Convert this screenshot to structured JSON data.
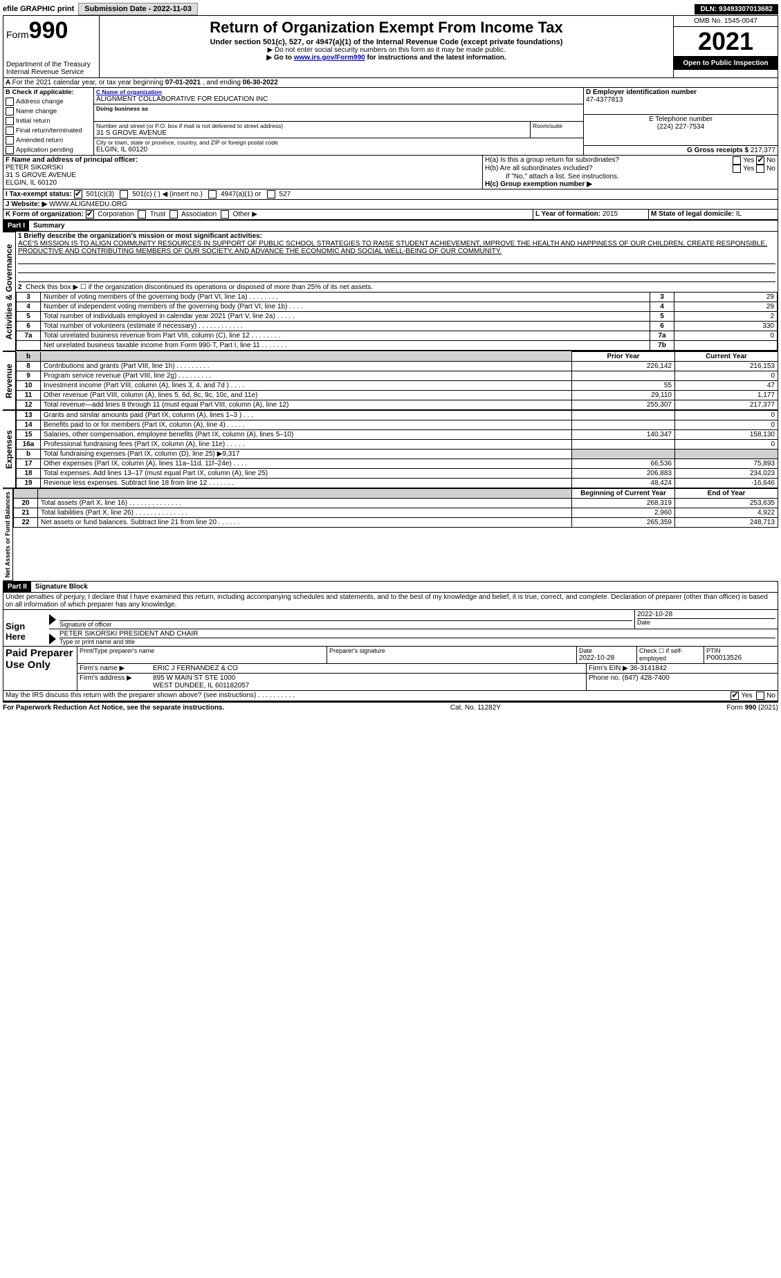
{
  "topbar": {
    "efile": "efile GRAPHIC print",
    "submission_label": "Submission Date - 2022-11-03",
    "dln": "DLN: 93493307013682"
  },
  "header": {
    "form_label": "Form",
    "form_number": "990",
    "title": "Return of Organization Exempt From Income Tax",
    "subtitle": "Under section 501(c), 527, or 4947(a)(1) of the Internal Revenue Code (except private foundations)",
    "note_ssn": "▶ Do not enter social security numbers on this form as it may be made public.",
    "note_goto_pre": "▶ Go to ",
    "note_goto_link": "www.irs.gov/Form990",
    "note_goto_post": " for instructions and the latest information.",
    "dept": "Department of the Treasury\nInternal Revenue Service",
    "omb": "OMB No. 1545-0047",
    "year": "2021",
    "public": "Open to Public Inspection"
  },
  "lineA": {
    "text_pre": "For the 2021 calendar year, or tax year beginning ",
    "begin": "07-01-2021",
    "mid": " , and ending ",
    "end": "06-30-2022"
  },
  "sectionB": {
    "label": "B Check if applicable:",
    "opts": [
      "Address change",
      "Name change",
      "Initial return",
      "Final return/terminated",
      "Amended return",
      "Application pending"
    ]
  },
  "sectionC": {
    "label": "C Name of organization",
    "name": "ALIGNMENT COLLABORATIVE FOR EDUCATION INC",
    "dba_label": "Doing business as",
    "street_label": "Number and street (or P.O. box if mail is not delivered to street address)",
    "room_label": "Room/suite",
    "street": "31 S GROVE AVENUE",
    "city_label": "City or town, state or province, country, and ZIP or foreign postal code",
    "city": "ELGIN, IL  60120"
  },
  "sectionD": {
    "label": "D Employer identification number",
    "value": "47-4377813"
  },
  "sectionE": {
    "label": "E Telephone number",
    "value": "(224) 227-7534"
  },
  "sectionG": {
    "label": "G Gross receipts $",
    "value": "217,377"
  },
  "sectionF": {
    "label": "F Name and address of principal officer:",
    "name": "PETER SIKORSKI",
    "street": "31 S GROVE AVENUE",
    "city": "ELGIN, IL  60120"
  },
  "sectionH": {
    "a_label": "H(a)  Is this a group return for subordinates?",
    "b_label": "H(b)  Are all subordinates included?",
    "b_note": "If \"No,\" attach a list. See instructions.",
    "c_label": "H(c)  Group exemption number ▶",
    "yes": "Yes",
    "no": "No"
  },
  "sectionI": {
    "label": "I   Tax-exempt status:",
    "opts": [
      "501(c)(3)",
      "501(c) (    ) ◀ (insert no.)",
      "4947(a)(1) or",
      "527"
    ]
  },
  "sectionJ": {
    "label": "J   Website: ▶",
    "value": "WWW.ALIGN4EDU.ORG"
  },
  "sectionK": {
    "label": "K Form of organization:",
    "opts": [
      "Corporation",
      "Trust",
      "Association",
      "Other ▶"
    ]
  },
  "sectionL": {
    "label": "L Year of formation:",
    "value": "2015"
  },
  "sectionM": {
    "label": "M State of legal domicile:",
    "value": "IL"
  },
  "part1": {
    "label": "Part I",
    "title": "Summary",
    "q1_label": "1  Briefly describe the organization's mission or most significant activities:",
    "mission": "ACE'S MISSION IS TO ALIGN COMMUNITY RESOURCES IN SUPPORT OF PUBLIC SCHOOL STRATEGIES TO RAISE STUDENT ACHIEVEMENT, IMPROVE THE HEALTH AND HAPPINESS OF OUR CHILDREN, CREATE RESPONSIBLE, PRODUCTIVE AND CONTRIBUTING MEMBERS OF OUR SOCIETY, AND ADVANCE THE ECONOMIC AND SOCIAL WELL-BEING OF OUR COMMUNITY.",
    "q2": "Check this box ▶ ☐  if the organization discontinued its operations or disposed of more than 25% of its net assets.",
    "rows_gov": [
      {
        "n": "3",
        "t": "Number of voting members of the governing body (Part VI, line 1a)   .    .    .    .    .    .    .    .",
        "r": "3",
        "v": "29"
      },
      {
        "n": "4",
        "t": "Number of independent voting members of the governing body (Part VI, line 1b)    .    .    .    .",
        "r": "4",
        "v": "29"
      },
      {
        "n": "5",
        "t": "Total number of individuals employed in calendar year 2021 (Part V, line 2a)    .    .    .    .    .",
        "r": "5",
        "v": "2"
      },
      {
        "n": "6",
        "t": "Total number of volunteers (estimate if necessary)    .    .    .    .    .    .    .    .    .    .    .    .",
        "r": "6",
        "v": "330"
      },
      {
        "n": "7a",
        "t": "Total unrelated business revenue from Part VIII, column (C), line 12    .    .    .    .    .    .    .    .",
        "r": "7a",
        "v": "0"
      },
      {
        "n": "",
        "t": "Net unrelated business taxable income from Form 990-T, Part I, line 11   .    .    .    .    .    .    .",
        "r": "7b",
        "v": ""
      }
    ],
    "prior_label": "Prior Year",
    "current_label": "Current Year",
    "rows_rev": [
      {
        "n": "8",
        "t": "Contributions and grants (Part VIII, line 1h)    .    .    .    .    .    .    .    .    .",
        "p": "226,142",
        "c": "216,153"
      },
      {
        "n": "9",
        "t": "Program service revenue (Part VIII, line 2g)    .    .    .    .    .    .    .    .    .",
        "p": "",
        "c": "0"
      },
      {
        "n": "10",
        "t": "Investment income (Part VIII, column (A), lines 3, 4, and 7d )    .    .    .    .",
        "p": "55",
        "c": "47"
      },
      {
        "n": "11",
        "t": "Other revenue (Part VIII, column (A), lines 5, 6d, 8c, 9c, 10c, and 11e)",
        "p": "29,110",
        "c": "1,177"
      },
      {
        "n": "12",
        "t": "Total revenue—add lines 8 through 11 (must equal Part VIII, column (A), line 12)",
        "p": "255,307",
        "c": "217,377"
      }
    ],
    "rows_exp": [
      {
        "n": "13",
        "t": "Grants and similar amounts paid (Part IX, column (A), lines 1–3 )   .    .    .",
        "p": "",
        "c": "0"
      },
      {
        "n": "14",
        "t": "Benefits paid to or for members (Part IX, column (A), line 4)    .    .    .    .    .",
        "p": "",
        "c": "0"
      },
      {
        "n": "15",
        "t": "Salaries, other compensation, employee benefits (Part IX, column (A), lines 5–10)",
        "p": "140,347",
        "c": "158,130"
      },
      {
        "n": "16a",
        "t": "Professional fundraising fees (Part IX, column (A), line 11e)    .    .    .    .    .",
        "p": "",
        "c": "0"
      },
      {
        "n": "b",
        "t": "Total fundraising expenses (Part IX, column (D), line 25) ▶9,317",
        "p": "grey",
        "c": "grey"
      },
      {
        "n": "17",
        "t": "Other expenses (Part IX, column (A), lines 11a–11d, 11f–24e)    .    .    .    .",
        "p": "66,536",
        "c": "75,893"
      },
      {
        "n": "18",
        "t": "Total expenses. Add lines 13–17 (must equal Part IX, column (A), line 25)",
        "p": "206,883",
        "c": "234,023"
      },
      {
        "n": "19",
        "t": "Revenue less expenses. Subtract line 18 from line 12   .    .    .    .    .    .    .",
        "p": "48,424",
        "c": "-16,646"
      }
    ],
    "boy_label": "Beginning of Current Year",
    "eoy_label": "End of Year",
    "rows_net": [
      {
        "n": "20",
        "t": "Total assets (Part X, line 16)    .    .    .    .    .    .    .    .    .    .    .    .    .    .",
        "p": "268,319",
        "c": "253,635"
      },
      {
        "n": "21",
        "t": "Total liabilities (Part X, line 26)   .    .    .    .    .    .    .    .    .    .    .    .    .    .",
        "p": "2,960",
        "c": "4,922"
      },
      {
        "n": "22",
        "t": "Net assets or fund balances. Subtract line 21 from line 20    .    .    .    .    .    .",
        "p": "265,359",
        "c": "248,713"
      }
    ]
  },
  "part2": {
    "label": "Part II",
    "title": "Signature Block",
    "jurat": "Under penalties of perjury, I declare that I have examined this return, including accompanying schedules and statements, and to the best of my knowledge and belief, it is true, correct, and complete. Declaration of preparer (other than officer) is based on all information of which preparer has any knowledge.",
    "sign_here": "Sign Here",
    "sig_officer": "Signature of officer",
    "date": "Date",
    "sig_date": "2022-10-28",
    "name_title": "PETER SIKORSKI  PRESIDENT AND CHAIR",
    "name_title_label": "Type or print name and title",
    "paid": "Paid Preparer Use Only",
    "prep_name_label": "Print/Type preparer's name",
    "prep_sig_label": "Preparer's signature",
    "prep_date": "2022-10-28",
    "check_if": "Check ☐ if self-employed",
    "ptin_label": "PTIN",
    "ptin": "P00013526",
    "firm_name_label": "Firm's name    ▶",
    "firm_name": "ERIC J FERNANDEZ & CO",
    "firm_ein_label": "Firm's EIN ▶",
    "firm_ein": "36-3141842",
    "firm_addr_label": "Firm's address ▶",
    "firm_addr1": "895 W MAIN ST STE 1000",
    "firm_addr2": "WEST DUNDEE, IL  601182057",
    "phone_label": "Phone no.",
    "phone": "(847) 428-7400",
    "discuss": "May the IRS discuss this return with the preparer shown above? (see instructions)    .    .    .    .    .    .    .    .    .    .",
    "yes": "Yes",
    "no": "No"
  },
  "footer": {
    "pra": "For Paperwork Reduction Act Notice, see the separate instructions.",
    "cat": "Cat. No. 11282Y",
    "form": "Form 990 (2021)"
  },
  "side_labels": {
    "gov": "Activities & Governance",
    "rev": "Revenue",
    "exp": "Expenses",
    "net": "Net Assets or Fund Balances"
  }
}
